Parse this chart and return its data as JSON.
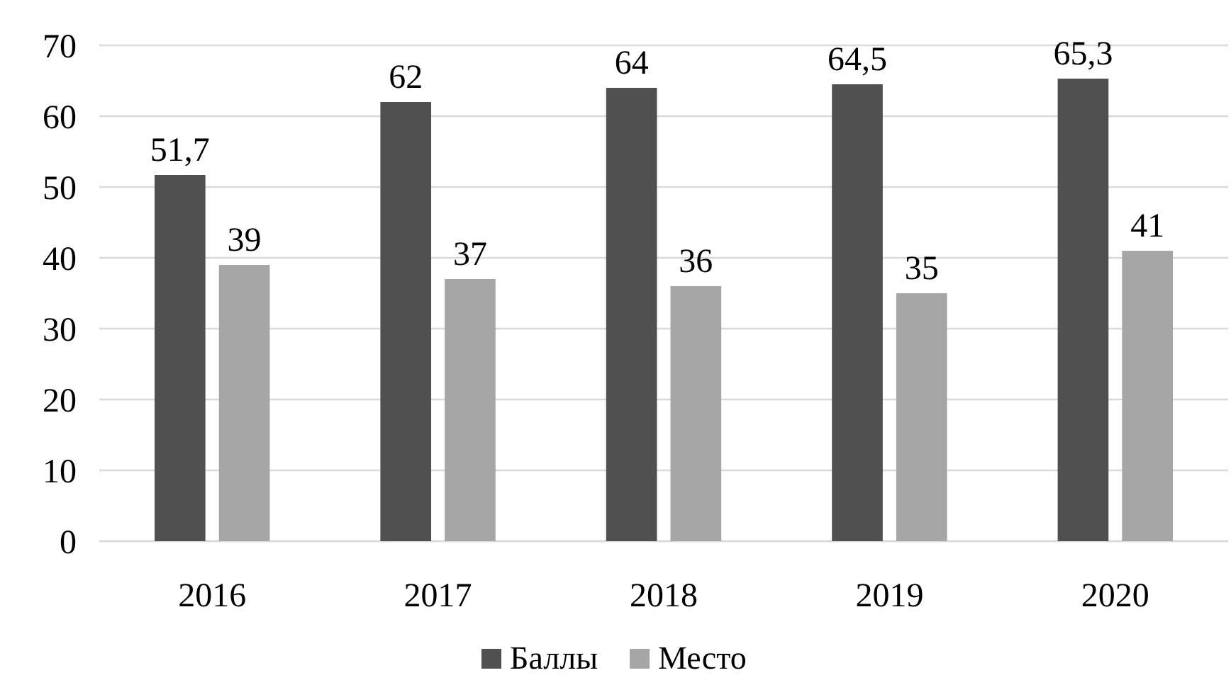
{
  "chart_data": {
    "type": "bar",
    "categories": [
      "2016",
      "2017",
      "2018",
      "2019",
      "2020"
    ],
    "series": [
      {
        "name": "Баллы",
        "color": "#505050",
        "values": [
          51.7,
          62,
          64,
          64.5,
          65.3
        ],
        "value_labels": [
          "51,7",
          "62",
          "64",
          "64,5",
          "65,3"
        ]
      },
      {
        "name": "Место",
        "color": "#a6a6a6",
        "values": [
          39,
          37,
          36,
          35,
          41
        ],
        "value_labels": [
          "39",
          "37",
          "36",
          "35",
          "41"
        ]
      }
    ],
    "ylim": [
      0,
      70
    ],
    "yticks": [
      0,
      10,
      20,
      30,
      40,
      50,
      60,
      70
    ],
    "grid": "y",
    "legend": "bottom"
  }
}
